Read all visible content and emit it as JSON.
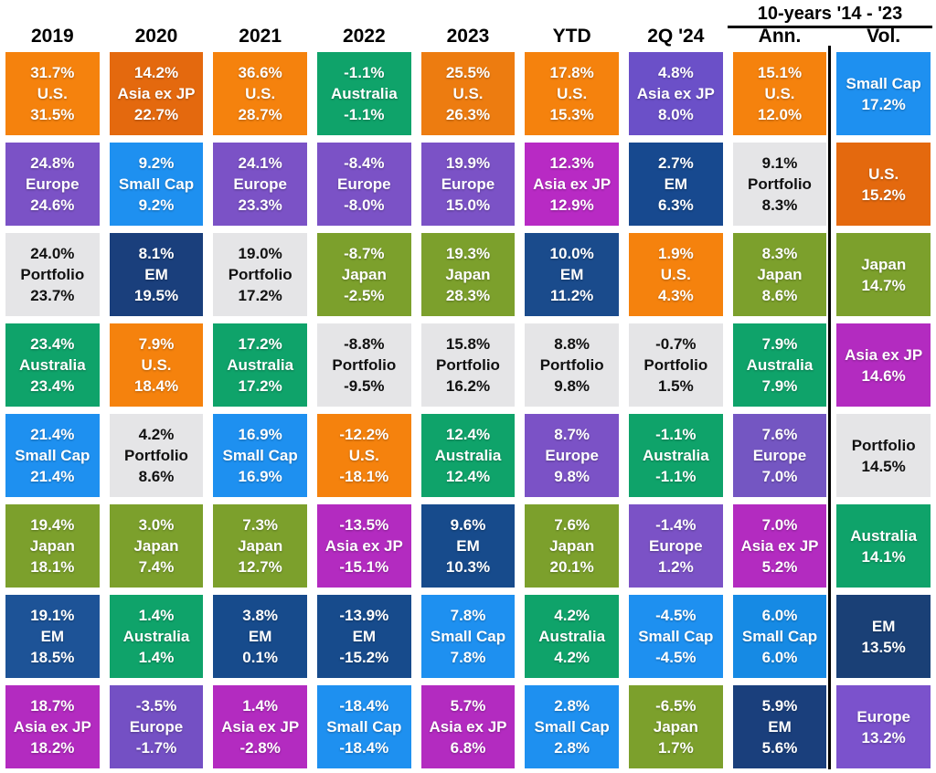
{
  "header": {
    "group_label": "10-years '14 - '23",
    "columns": [
      "2019",
      "2020",
      "2021",
      "2022",
      "2023",
      "YTD",
      "2Q '24",
      "Ann.",
      "Vol."
    ]
  },
  "chart_data": {
    "type": "table",
    "description_visible_labels": [
      "2019",
      "2020",
      "2021",
      "2022",
      "2023",
      "YTD",
      "2Q '24",
      "10-years '14 - '23",
      "Ann.",
      "Vol."
    ],
    "columns": [
      {
        "label": "2019",
        "cells": [
          {
            "top": "31.7%",
            "asset": "U.S.",
            "bottom": "31.5%",
            "color": "#F5820D"
          },
          {
            "top": "24.8%",
            "asset": "Europe",
            "bottom": "24.6%",
            "color": "#7B52C6"
          },
          {
            "top": "24.0%",
            "asset": "Portfolio",
            "bottom": "23.7%",
            "color": "#E5E5E7",
            "text_color": "#111111"
          },
          {
            "top": "23.4%",
            "asset": "Australia",
            "bottom": "23.4%",
            "color": "#0FA36A"
          },
          {
            "top": "21.4%",
            "asset": "Small Cap",
            "bottom": "21.4%",
            "color": "#1E90F0"
          },
          {
            "top": "19.4%",
            "asset": "Japan",
            "bottom": "18.1%",
            "color": "#7CA02C"
          },
          {
            "top": "19.1%",
            "asset": "EM",
            "bottom": "18.5%",
            "color": "#1D5397"
          },
          {
            "top": "18.7%",
            "asset": "Asia ex JP",
            "bottom": "18.2%",
            "color": "#B32BC0"
          }
        ]
      },
      {
        "label": "2020",
        "cells": [
          {
            "top": "14.2%",
            "asset": "Asia ex JP",
            "bottom": "22.7%",
            "color": "#E4690E"
          },
          {
            "top": "9.2%",
            "asset": "Small Cap",
            "bottom": "9.2%",
            "color": "#1E90F0"
          },
          {
            "top": "8.1%",
            "asset": "EM",
            "bottom": "19.5%",
            "color": "#1A3F7C"
          },
          {
            "top": "7.9%",
            "asset": "U.S.",
            "bottom": "18.4%",
            "color": "#F5820D"
          },
          {
            "top": "4.2%",
            "asset": "Portfolio",
            "bottom": "8.6%",
            "color": "#E5E5E7",
            "text_color": "#111111"
          },
          {
            "top": "3.0%",
            "asset": "Japan",
            "bottom": "7.4%",
            "color": "#7CA02C"
          },
          {
            "top": "1.4%",
            "asset": "Australia",
            "bottom": "1.4%",
            "color": "#0FA36A"
          },
          {
            "top": "-3.5%",
            "asset": "Europe",
            "bottom": "-1.7%",
            "color": "#7450C4"
          }
        ]
      },
      {
        "label": "2021",
        "cells": [
          {
            "top": "36.6%",
            "asset": "U.S.",
            "bottom": "28.7%",
            "color": "#F5820D"
          },
          {
            "top": "24.1%",
            "asset": "Europe",
            "bottom": "23.3%",
            "color": "#7B52C6"
          },
          {
            "top": "19.0%",
            "asset": "Portfolio",
            "bottom": "17.2%",
            "color": "#E5E5E7",
            "text_color": "#111111"
          },
          {
            "top": "17.2%",
            "asset": "Australia",
            "bottom": "17.2%",
            "color": "#0FA36A"
          },
          {
            "top": "16.9%",
            "asset": "Small Cap",
            "bottom": "16.9%",
            "color": "#1E90F0"
          },
          {
            "top": "7.3%",
            "asset": "Japan",
            "bottom": "12.7%",
            "color": "#7CA02C"
          },
          {
            "top": "3.8%",
            "asset": "EM",
            "bottom": "0.1%",
            "color": "#174B8C"
          },
          {
            "top": "1.4%",
            "asset": "Asia ex JP",
            "bottom": "-2.8%",
            "color": "#B32BC0"
          }
        ]
      },
      {
        "label": "2022",
        "cells": [
          {
            "top": "-1.1%",
            "asset": "Australia",
            "bottom": "-1.1%",
            "color": "#0FA36A"
          },
          {
            "top": "-8.4%",
            "asset": "Europe",
            "bottom": "-8.0%",
            "color": "#7B52C6"
          },
          {
            "top": "-8.7%",
            "asset": "Japan",
            "bottom": "-2.5%",
            "color": "#7CA02C"
          },
          {
            "top": "-8.8%",
            "asset": "Portfolio",
            "bottom": "-9.5%",
            "color": "#E5E5E7",
            "text_color": "#111111"
          },
          {
            "top": "-12.2%",
            "asset": "U.S.",
            "bottom": "-18.1%",
            "color": "#F5820D"
          },
          {
            "top": "-13.5%",
            "asset": "Asia ex JP",
            "bottom": "-15.1%",
            "color": "#B32BC0"
          },
          {
            "top": "-13.9%",
            "asset": "EM",
            "bottom": "-15.2%",
            "color": "#174B8C"
          },
          {
            "top": "-18.4%",
            "asset": "Small Cap",
            "bottom": "-18.4%",
            "color": "#1E90F0"
          }
        ]
      },
      {
        "label": "2023",
        "cells": [
          {
            "top": "25.5%",
            "asset": "U.S.",
            "bottom": "26.3%",
            "color": "#ED7C10"
          },
          {
            "top": "19.9%",
            "asset": "Europe",
            "bottom": "15.0%",
            "color": "#7B52C6"
          },
          {
            "top": "19.3%",
            "asset": "Japan",
            "bottom": "28.3%",
            "color": "#7CA02C"
          },
          {
            "top": "15.8%",
            "asset": "Portfolio",
            "bottom": "16.2%",
            "color": "#E5E5E7",
            "text_color": "#111111"
          },
          {
            "top": "12.4%",
            "asset": "Australia",
            "bottom": "12.4%",
            "color": "#0FA36A"
          },
          {
            "top": "9.6%",
            "asset": "EM",
            "bottom": "10.3%",
            "color": "#174B8C"
          },
          {
            "top": "7.8%",
            "asset": "Small Cap",
            "bottom": "7.8%",
            "color": "#1E90F0"
          },
          {
            "top": "5.7%",
            "asset": "Asia ex JP",
            "bottom": "6.8%",
            "color": "#B32BC0"
          }
        ]
      },
      {
        "label": "YTD",
        "cells": [
          {
            "top": "17.8%",
            "asset": "U.S.",
            "bottom": "15.3%",
            "color": "#F5820D"
          },
          {
            "top": "12.3%",
            "asset": "Asia ex JP",
            "bottom": "12.9%",
            "color": "#B82AC4"
          },
          {
            "top": "10.0%",
            "asset": "EM",
            "bottom": "11.2%",
            "color": "#1A4B8C"
          },
          {
            "top": "8.8%",
            "asset": "Portfolio",
            "bottom": "9.8%",
            "color": "#E5E5E7",
            "text_color": "#111111"
          },
          {
            "top": "8.7%",
            "asset": "Europe",
            "bottom": "9.8%",
            "color": "#7B52C6"
          },
          {
            "top": "7.6%",
            "asset": "Japan",
            "bottom": "20.1%",
            "color": "#7CA02C"
          },
          {
            "top": "4.2%",
            "asset": "Australia",
            "bottom": "4.2%",
            "color": "#0FA36A"
          },
          {
            "top": "2.8%",
            "asset": "Small Cap",
            "bottom": "2.8%",
            "color": "#1E90F0"
          }
        ]
      },
      {
        "label": "2Q '24",
        "cells": [
          {
            "top": "4.8%",
            "asset": "Asia ex JP",
            "bottom": "8.0%",
            "color": "#6B50C8"
          },
          {
            "top": "2.7%",
            "asset": "EM",
            "bottom": "6.3%",
            "color": "#17498F"
          },
          {
            "top": "1.9%",
            "asset": "U.S.",
            "bottom": "4.3%",
            "color": "#F5820D"
          },
          {
            "top": "-0.7%",
            "asset": "Portfolio",
            "bottom": "1.5%",
            "color": "#E5E5E7",
            "text_color": "#111111"
          },
          {
            "top": "-1.1%",
            "asset": "Australia",
            "bottom": "-1.1%",
            "color": "#0FA36A"
          },
          {
            "top": "-1.4%",
            "asset": "Europe",
            "bottom": "1.2%",
            "color": "#7B52C6"
          },
          {
            "top": "-4.5%",
            "asset": "Small Cap",
            "bottom": "-4.5%",
            "color": "#1E90F0"
          },
          {
            "top": "-6.5%",
            "asset": "Japan",
            "bottom": "1.7%",
            "color": "#7CA02C"
          }
        ]
      },
      {
        "label": "Ann.",
        "cells": [
          {
            "top": "15.1%",
            "asset": "U.S.",
            "bottom": "12.0%",
            "color": "#F5820D"
          },
          {
            "top": "9.1%",
            "asset": "Portfolio",
            "bottom": "8.3%",
            "color": "#E5E5E7",
            "text_color": "#111111"
          },
          {
            "top": "8.3%",
            "asset": "Japan",
            "bottom": "8.6%",
            "color": "#7CA02C"
          },
          {
            "top": "7.9%",
            "asset": "Australia",
            "bottom": "7.9%",
            "color": "#0FA36A"
          },
          {
            "top": "7.6%",
            "asset": "Europe",
            "bottom": "7.0%",
            "color": "#7456C2"
          },
          {
            "top": "7.0%",
            "asset": "Asia ex JP",
            "bottom": "5.2%",
            "color": "#B32BC0"
          },
          {
            "top": "6.0%",
            "asset": "Small Cap",
            "bottom": "6.0%",
            "color": "#168AE4"
          },
          {
            "top": "5.9%",
            "asset": "EM",
            "bottom": "5.6%",
            "color": "#1A3F7C"
          }
        ]
      },
      {
        "label": "Vol.",
        "cells": [
          {
            "asset": "Small Cap",
            "value": "17.2%",
            "color": "#1E90F0"
          },
          {
            "asset": "U.S.",
            "value": "15.2%",
            "color": "#E4690E"
          },
          {
            "asset": "Japan",
            "value": "14.7%",
            "color": "#7CA02C"
          },
          {
            "asset": "Asia ex JP",
            "value": "14.6%",
            "color": "#B32BC0"
          },
          {
            "asset": "Portfolio",
            "value": "14.5%",
            "color": "#E5E5E7",
            "text_color": "#111111"
          },
          {
            "asset": "Australia",
            "value": "14.1%",
            "color": "#0FA36A"
          },
          {
            "asset": "EM",
            "value": "13.5%",
            "color": "#1A4076"
          },
          {
            "asset": "Europe",
            "value": "13.2%",
            "color": "#7B52CC"
          }
        ]
      }
    ],
    "layout": {
      "rows": 8,
      "columns": 9,
      "separator_color": "#000000",
      "background": "#ffffff"
    }
  }
}
